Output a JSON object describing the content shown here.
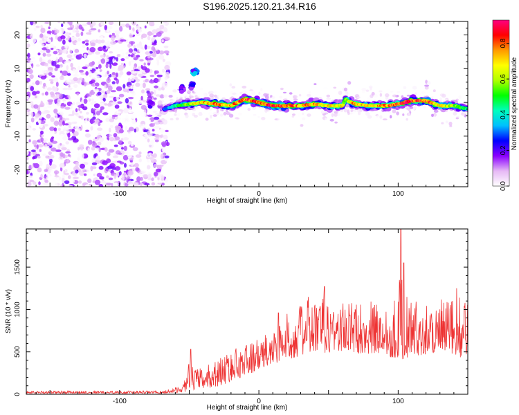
{
  "title": "S196.2025.120.21.34.R16",
  "chart_data": [
    {
      "type": "heatmap",
      "xlabel": "Height of straight line (km)",
      "ylabel": "Frequency (Hz)",
      "xlim": [
        -167,
        150
      ],
      "ylim": [
        -25,
        24
      ],
      "xticks": [
        -100,
        0,
        100
      ],
      "xtick_labels": [
        "-100",
        "0",
        "100"
      ],
      "yticks": [
        -20,
        -10,
        0,
        10,
        20
      ],
      "ytick_labels": [
        "-20",
        "-10",
        "0",
        "10",
        "20"
      ],
      "colorbar": {
        "label": "Normalized spectral amplitude",
        "range": [
          0,
          0.93
        ],
        "ticks": [
          0,
          0.2,
          0.4,
          0.6,
          0.8
        ],
        "tick_labels": [
          "0.0",
          "0.2",
          "0.4",
          "0.6",
          "0.8"
        ],
        "colors": [
          "#ffffff",
          "#e6b8f5",
          "#8a00ff",
          "#0000ff",
          "#00bfff",
          "#00ffbf",
          "#00ff00",
          "#b0ff00",
          "#ffff00",
          "#ff9900",
          "#ff0000",
          "#ff0080"
        ]
      },
      "noise_region_x": [
        -167,
        -65
      ],
      "ridge": {
        "x": [
          -68,
          -60,
          -50,
          -40,
          -30,
          -20,
          -10,
          0,
          10,
          20,
          30,
          40,
          50,
          60,
          62,
          66,
          70,
          80,
          90,
          100,
          110,
          120,
          130,
          140,
          150
        ],
        "frequency": [
          -2,
          -1,
          -0.5,
          0,
          -0.5,
          -1,
          1,
          0,
          -1,
          -1,
          -1,
          -0.5,
          -1,
          -1,
          1,
          0,
          -0.5,
          -1,
          -1,
          -0.5,
          0.5,
          0.5,
          -1,
          -1,
          -2
        ],
        "amplitude": [
          0.3,
          0.45,
          0.6,
          0.75,
          0.8,
          0.75,
          0.85,
          0.9,
          0.9,
          0.85,
          0.8,
          0.75,
          0.7,
          0.7,
          0.55,
          0.75,
          0.75,
          0.7,
          0.8,
          0.85,
          0.9,
          0.85,
          0.7,
          0.6,
          0.45
        ]
      },
      "blobs": [
        {
          "x": -46,
          "frequency": 9,
          "amplitude": 0.35
        },
        {
          "x": -48,
          "frequency": 5,
          "amplitude": 0.25
        },
        {
          "x": -55,
          "frequency": 4,
          "amplitude": 0.2
        },
        {
          "x": -78,
          "frequency": 0,
          "amplitude": 0.2
        },
        {
          "x": -100,
          "frequency": -8,
          "amplitude": 0.15
        }
      ]
    },
    {
      "type": "line",
      "xlabel": "Height of straight line (km)",
      "ylabel": "SNR (10 * v/v)",
      "xlim": [
        -167,
        150
      ],
      "ylim": [
        0,
        1950
      ],
      "xticks": [
        -100,
        0,
        100
      ],
      "xtick_labels": [
        "-100",
        "0",
        "100"
      ],
      "yticks": [
        0,
        500,
        1000,
        1500
      ],
      "ytick_labels": [
        "0",
        "500",
        "1000",
        "1500"
      ],
      "color": "#ee3333",
      "envelope": {
        "x": [
          -167,
          -100,
          -70,
          -55,
          -50,
          -45,
          -40,
          -30,
          -20,
          -10,
          0,
          10,
          15,
          25,
          35,
          45,
          60,
          75,
          90,
          100,
          102,
          104,
          110,
          125,
          140,
          150
        ],
        "low": [
          10,
          10,
          10,
          20,
          40,
          60,
          60,
          90,
          150,
          220,
          280,
          350,
          380,
          430,
          480,
          480,
          500,
          480,
          450,
          420,
          400,
          420,
          450,
          480,
          450,
          420
        ],
        "high": [
          40,
          40,
          40,
          100,
          380,
          300,
          320,
          420,
          520,
          600,
          650,
          760,
          900,
          1000,
          1150,
          1150,
          1100,
          1100,
          1100,
          1150,
          1950,
          1200,
          1100,
          1100,
          1150,
          1150
        ],
        "spikes": [
          {
            "x": -49,
            "y": 530
          },
          {
            "x": 14,
            "y": 960
          },
          {
            "x": 47,
            "y": 1270
          },
          {
            "x": 102,
            "y": 1950
          },
          {
            "x": 104,
            "y": 1550
          },
          {
            "x": 142,
            "y": 1250
          }
        ]
      }
    }
  ]
}
